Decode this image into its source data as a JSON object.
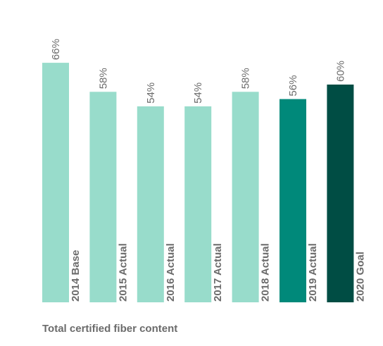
{
  "chart_data": {
    "type": "bar",
    "categories": [
      "2014 Base",
      "2015 Actual",
      "2016 Actual",
      "2017 Actual",
      "2018 Actual",
      "2019 Actual",
      "2020 Goal"
    ],
    "values": [
      66,
      58,
      54,
      54,
      58,
      56,
      60
    ],
    "value_labels": [
      "66%",
      "58%",
      "54%",
      "54%",
      "58%",
      "56%",
      "60%"
    ],
    "ylim": [
      0,
      100
    ],
    "unit": "%",
    "bar_colors": [
      "#98dccb",
      "#98dccb",
      "#98dccb",
      "#98dccb",
      "#98dccb",
      "#00897a",
      "#004d44"
    ],
    "label_color": "#6b6b6b",
    "grid": false,
    "legend": "none",
    "title": "",
    "xlabel": "",
    "ylabel": ""
  },
  "caption": "Total certified fiber content"
}
